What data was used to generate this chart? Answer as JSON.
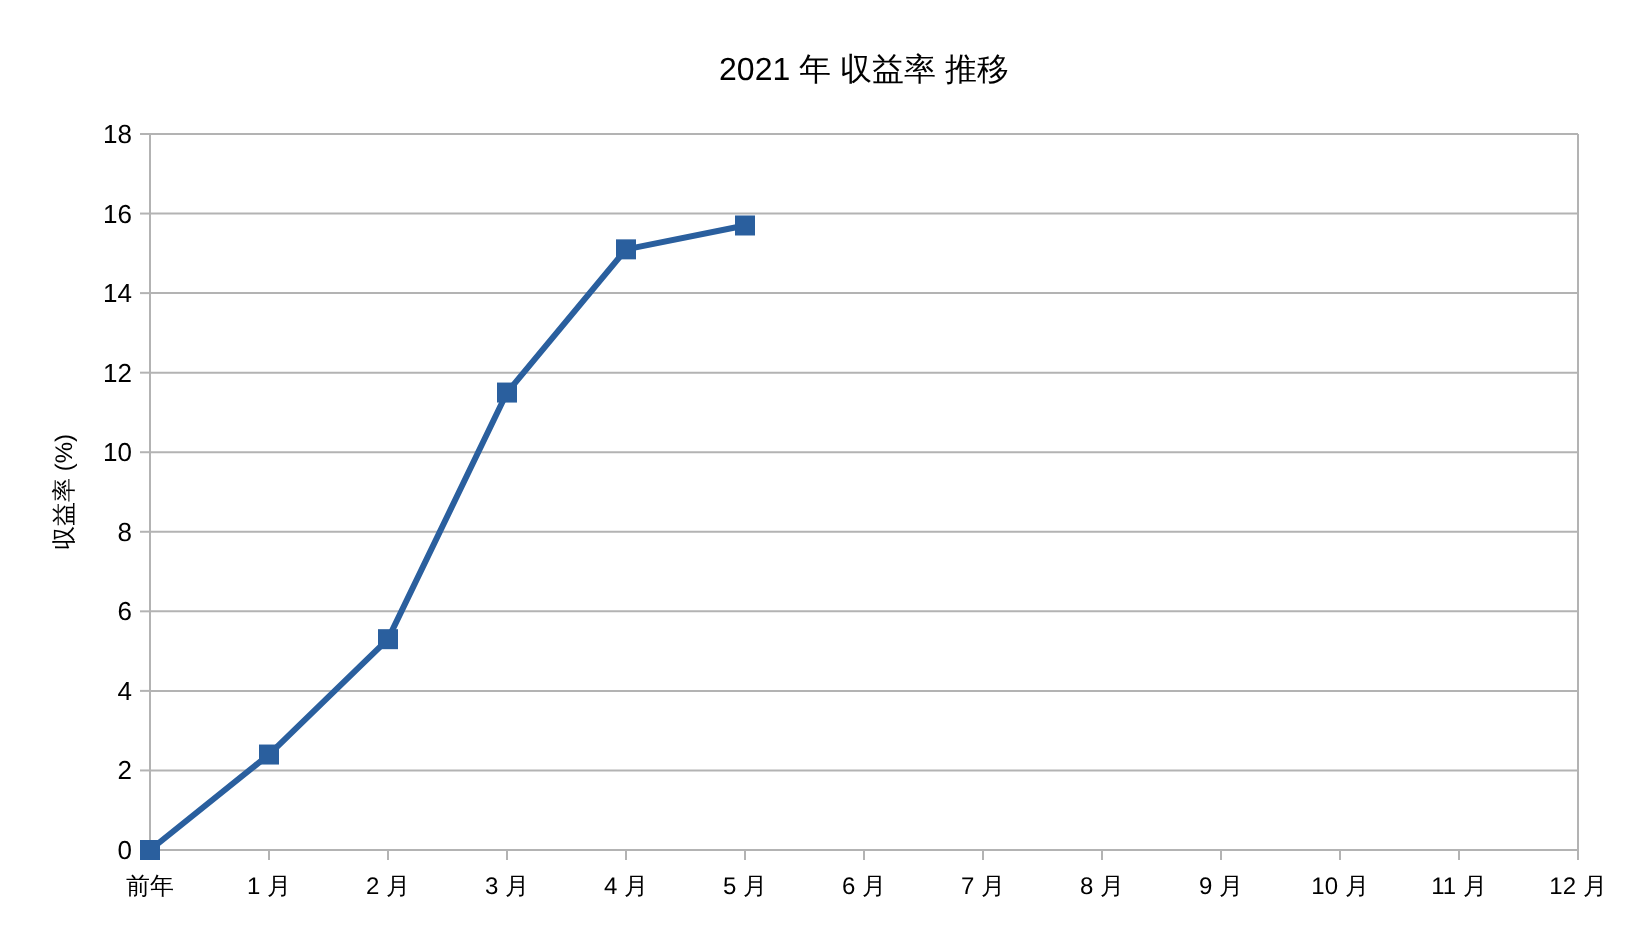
{
  "chart_data": {
    "type": "line",
    "title": "2021 年 収益率 推移",
    "ylabel": "収益率 (%)",
    "categories": [
      "前年",
      "1 月",
      "2 月",
      "3 月",
      "4 月",
      "5 月",
      "6 月",
      "7 月",
      "8 月",
      "9 月",
      "10 月",
      "11 月",
      "12 月"
    ],
    "series": [
      {
        "color": "#2a5f9e",
        "values": [
          0,
          2.4,
          5.3,
          11.5,
          15.1,
          15.7,
          null,
          null,
          null,
          null,
          null,
          null,
          null
        ]
      }
    ],
    "ylim": [
      0,
      18
    ],
    "yticks": [
      0,
      2,
      4,
      6,
      8,
      10,
      12,
      14,
      16,
      18
    ],
    "grid": "y",
    "marker": "square"
  }
}
